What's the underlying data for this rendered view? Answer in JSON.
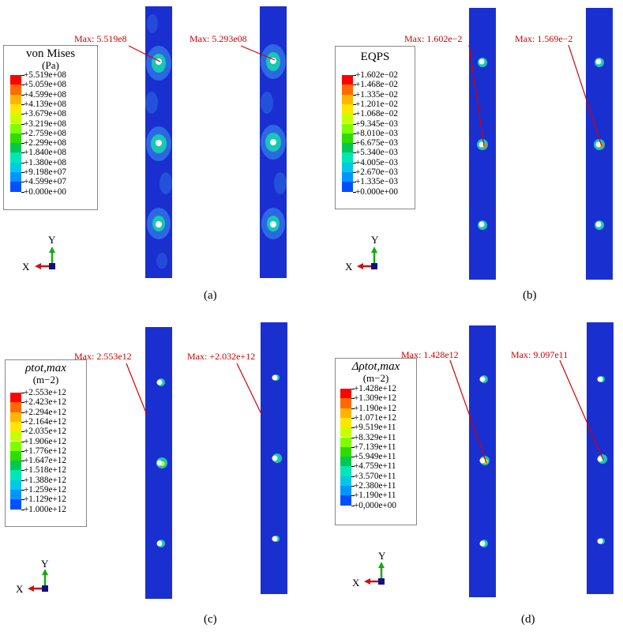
{
  "colors": {
    "plate": "#1a2fd0",
    "scale": [
      "#ff0000",
      "#ff6a00",
      "#ffb400",
      "#ffe600",
      "#c8ff00",
      "#7dff00",
      "#2fdc00",
      "#00c850",
      "#00e6b4",
      "#00c8e6",
      "#0096ff",
      "#0050ff",
      "#0000ff"
    ],
    "annotation": "#d40000"
  },
  "panels": [
    {
      "id": "a",
      "caption": "(a)",
      "legend_title": "von Mises",
      "legend_sub": "(Pa)",
      "values": [
        "+5.519e+08",
        "+5.059e+08",
        "+4.599e+08",
        "+4.139e+08",
        "+3.679e+08",
        "+3.219e+08",
        "+2.759e+08",
        "+2.299e+08",
        "+1.840e+08",
        "+1.380e+08",
        "+9.198e+07",
        "+4.599e+07",
        "+0.000e+00"
      ],
      "max_labels": [
        "Max: 5.519e8",
        "Max: 5.293e08"
      ],
      "triad": {
        "x": "X",
        "y": "Y"
      }
    },
    {
      "id": "b",
      "caption": "(b)",
      "legend_title": "EQPS",
      "legend_sub": "",
      "values": [
        "+1.602e−02",
        "+1.468e−02",
        "+1.335e−02",
        "+1.201e−02",
        "+1.068e−02",
        "+9.345e−03",
        "+8.010e−03",
        "+6.675e−03",
        "+5.340e−03",
        "+4.005e−03",
        "+2.670e−03",
        "+1.335e−03",
        "+0.000e+00"
      ],
      "max_labels": [
        "Max: 1.602e−2",
        "Max: 1.569e−2"
      ],
      "triad": {
        "x": "X",
        "y": "Y"
      }
    },
    {
      "id": "c",
      "caption": "(c)",
      "legend_title": "ρtot,max",
      "legend_sub": "(m−2)",
      "values": [
        "+2.553e+12",
        "+2.423e+12",
        "+2.294e+12",
        "+2.164e+12",
        "+2.035e+12",
        "+1.906e+12",
        "+1.776e+12",
        "+1.647e+12",
        "+1.518e+12",
        "+1.388e+12",
        "+1.259e+12",
        "+1.129e+12",
        "+1.000e+12"
      ],
      "max_labels": [
        "Max: 2.553e12",
        "Max: +2.032e+12"
      ],
      "triad": {
        "x": "X",
        "y": "Y"
      }
    },
    {
      "id": "d",
      "caption": "(d)",
      "legend_title": "Δρtot,max",
      "legend_sub": "(m−2)",
      "values": [
        "+1.428e+12",
        "+1.309e+12",
        "+1.190e+12",
        "+1.071e+12",
        "+9.519e+11",
        "+8.329e+11",
        "+7.139e+11",
        "+5.949e+11",
        "+4.759e+11",
        "+3.570e+11",
        "+2.380e+11",
        "+1.190e+11",
        "+0,000e+00"
      ],
      "max_labels": [
        "Max: 1.428e12",
        "Max: 9.097e11"
      ],
      "triad": {
        "x": "X",
        "y": "Y"
      }
    }
  ]
}
